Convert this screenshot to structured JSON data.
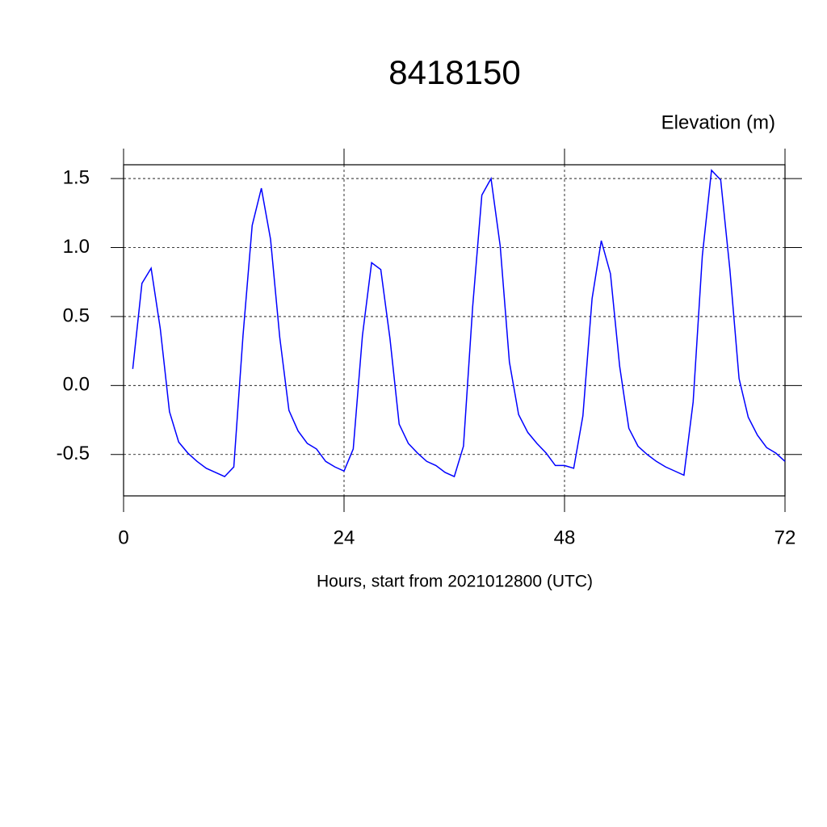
{
  "chart_data": {
    "type": "line",
    "title": "8418150",
    "y_label": "Elevation (m)",
    "x_label": "Hours, start from 2021012800 (UTC)",
    "x": [
      1,
      2,
      3,
      4,
      5,
      6,
      7,
      8,
      9,
      10,
      11,
      12,
      13,
      14,
      15,
      16,
      17,
      18,
      19,
      20,
      21,
      22,
      23,
      24,
      25,
      26,
      27,
      28,
      29,
      30,
      31,
      32,
      33,
      34,
      35,
      36,
      37,
      38,
      39,
      40,
      41,
      42,
      43,
      44,
      45,
      46,
      47,
      48,
      49,
      50,
      51,
      52,
      53,
      54,
      55,
      56,
      57,
      58,
      59,
      60,
      61,
      62,
      63,
      64,
      65,
      66,
      67,
      68,
      69,
      70,
      71,
      72
    ],
    "series": [
      {
        "name": "Elevation",
        "color": "#0000ff",
        "values": [
          0.12,
          0.74,
          0.85,
          0.41,
          -0.19,
          -0.41,
          -0.49,
          -0.55,
          -0.6,
          -0.63,
          -0.66,
          -0.59,
          0.36,
          1.16,
          1.43,
          1.06,
          0.35,
          -0.18,
          -0.33,
          -0.42,
          -0.46,
          -0.55,
          -0.59,
          -0.62,
          -0.46,
          0.36,
          0.89,
          0.84,
          0.34,
          -0.28,
          -0.42,
          -0.49,
          -0.55,
          -0.58,
          -0.63,
          -0.66,
          -0.44,
          0.57,
          1.38,
          1.5,
          1.01,
          0.17,
          -0.21,
          -0.34,
          -0.42,
          -0.49,
          -0.58,
          -0.58,
          -0.6,
          -0.22,
          0.63,
          1.05,
          0.81,
          0.14,
          -0.31,
          -0.44,
          -0.5,
          -0.55,
          -0.59,
          -0.62,
          -0.65,
          -0.12,
          0.94,
          1.56,
          1.49,
          0.84,
          0.05,
          -0.23,
          -0.36,
          -0.45,
          -0.49,
          -0.55
        ]
      }
    ],
    "xlim": [
      0,
      72
    ],
    "xticks": [
      0,
      24,
      48,
      72
    ],
    "ylim": [
      -0.8,
      1.6
    ],
    "yticks": [
      {
        "value": 1.5,
        "label": "1.5"
      },
      {
        "value": 1.0,
        "label": "1.0"
      },
      {
        "value": 0.5,
        "label": "0.5"
      },
      {
        "value": 0.0,
        "label": "0.0"
      },
      {
        "value": -0.5,
        "label": "-0.5"
      }
    ],
    "grid": true
  }
}
